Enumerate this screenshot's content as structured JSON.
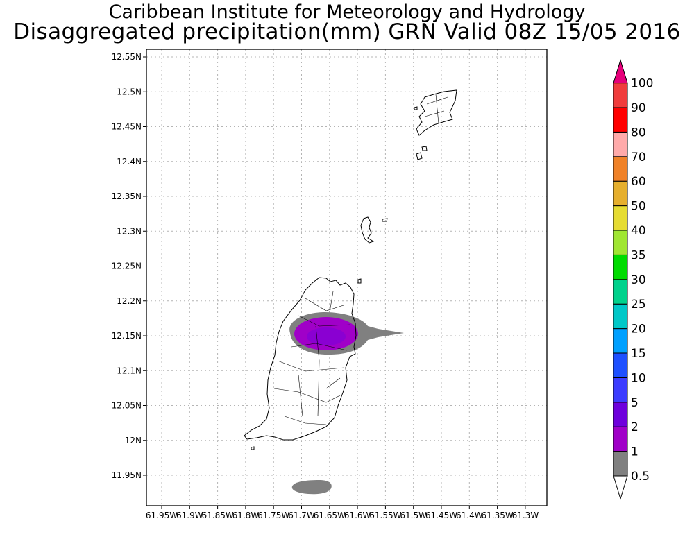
{
  "title_line1": "Caribbean Institute for Meteorology and Hydrology",
  "title_line2": "Disaggregated precipitation(mm) GRN Valid 08Z 15/05 2016",
  "map": {
    "lat_labels": [
      "12.55N",
      "12.5N",
      "12.45N",
      "12.4N",
      "12.35N",
      "12.3N",
      "12.25N",
      "12.2N",
      "12.15N",
      "12.1N",
      "12.05N",
      "12N",
      "11.95N"
    ],
    "lon_labels": [
      "61.95W",
      "61.9W",
      "61.85W",
      "61.8W",
      "61.75W",
      "61.7W",
      "61.65W",
      "61.6W",
      "61.55W",
      "61.5W",
      "61.45W",
      "61.4W",
      "61.35W",
      "61.3W"
    ],
    "grid": true
  },
  "colorbar": {
    "levels": [
      "0.5",
      "1",
      "2",
      "5",
      "10",
      "15",
      "20",
      "25",
      "30",
      "35",
      "40",
      "50",
      "60",
      "70",
      "80",
      "90",
      "100"
    ],
    "colors": [
      "#808080",
      "#a000c8",
      "#6e00dc",
      "#3c3cff",
      "#1e50ff",
      "#00a0ff",
      "#00c8c8",
      "#00d28c",
      "#00dc00",
      "#a0e632",
      "#e6dc32",
      "#e6af2d",
      "#f08228",
      "#ffaaaa",
      "#ff0000",
      "#f03c3c"
    ],
    "top_color": "#e6007a"
  }
}
